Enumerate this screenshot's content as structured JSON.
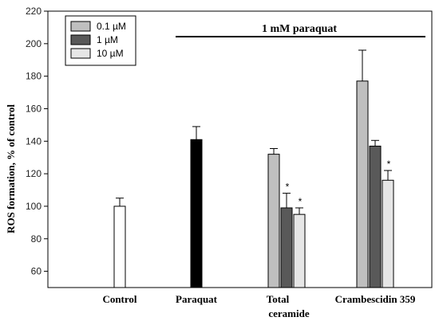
{
  "chart_data": {
    "type": "bar",
    "ylabel": "ROS formation, % of control",
    "ylim": [
      50,
      220
    ],
    "yticks": [
      60,
      80,
      100,
      120,
      140,
      160,
      180,
      200,
      220
    ],
    "grid": false,
    "legend_position": "top-left",
    "annotation": "1 mM paraquat",
    "categories": [
      "Control",
      "Paraquat",
      "Total ceramide",
      "Crambescidin 359"
    ],
    "series": [
      {
        "name": "0.1 µM",
        "color": "#bfbfbf"
      },
      {
        "name": "1 µM",
        "color": "#595959"
      },
      {
        "name": "10 µM",
        "color": "#e6e6e6"
      }
    ],
    "bars": [
      {
        "category": "Control",
        "series": null,
        "value": 100,
        "error": 5,
        "color": "#ffffff",
        "star": false
      },
      {
        "category": "Paraquat",
        "series": null,
        "value": 141,
        "error": 8,
        "color": "#000000",
        "star": false
      },
      {
        "category": "Total ceramide",
        "series": "0.1 µM",
        "value": 132,
        "error": 3.5,
        "color": "#bfbfbf",
        "star": false
      },
      {
        "category": "Total ceramide",
        "series": "1 µM",
        "value": 99,
        "error": 9,
        "color": "#595959",
        "star": true
      },
      {
        "category": "Total ceramide",
        "series": "10 µM",
        "value": 95,
        "error": 4,
        "color": "#e6e6e6",
        "star": true
      },
      {
        "category": "Crambescidin 359",
        "series": "0.1 µM",
        "value": 177,
        "error": 19,
        "color": "#bfbfbf",
        "star": false
      },
      {
        "category": "Crambescidin 359",
        "series": "1 µM",
        "value": 137,
        "error": 3.5,
        "color": "#595959",
        "star": false
      },
      {
        "category": "Crambescidin 359",
        "series": "10 µM",
        "value": 116,
        "error": 6,
        "color": "#e6e6e6",
        "star": true
      }
    ],
    "star_symbol": "*"
  }
}
